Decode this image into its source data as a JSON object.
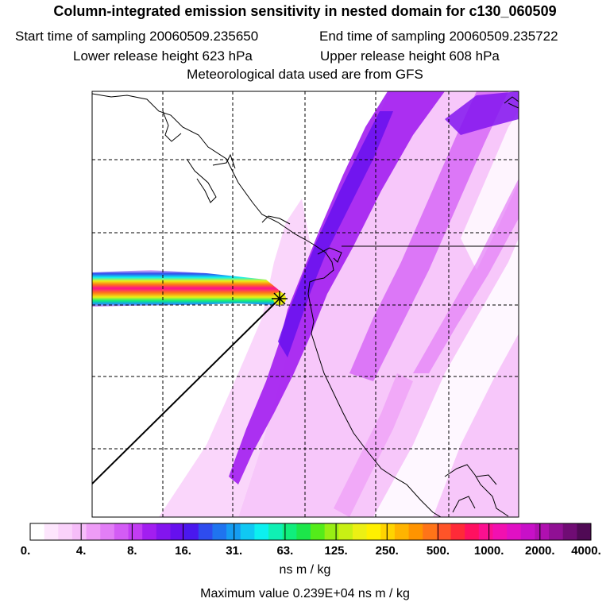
{
  "header": {
    "title": "Column-integrated emission sensitivity in nested domain for c130_060509",
    "start_label": "Start time of sampling 20060509.235650",
    "end_label": "End time of sampling 20060509.235722",
    "lower_label": "Lower release height  623 hPa",
    "upper_label": "Upper release height  608 hPa",
    "meteo_label": "Meteorological data used are from GFS"
  },
  "colorbar": {
    "tick_labels": [
      "0.",
      "4.",
      "8.",
      "16.",
      "31.",
      "63.",
      "125.",
      "250.",
      "500.",
      "1000.",
      "2000.",
      "4000."
    ],
    "colors": [
      "#ffffff",
      "#fde6fd",
      "#fad2fb",
      "#f6bdf9",
      "#ee9cf7",
      "#e27ef6",
      "#d35cf5",
      "#c23cf3",
      "#a21ef0",
      "#8315ee",
      "#6610ee",
      "#4a18ee",
      "#2e4cee",
      "#1f74ef",
      "#159cf2",
      "#10c8f3",
      "#0cf0f0",
      "#0ff0b4",
      "#10ee7c",
      "#1ce64a",
      "#54ec1a",
      "#98ee14",
      "#c8f014",
      "#ecf014",
      "#fff000",
      "#ffd400",
      "#ffb400",
      "#ff9400",
      "#ff7418",
      "#ff5428",
      "#ff2a38",
      "#ff1060",
      "#fb1090",
      "#f210b0",
      "#e010c4",
      "#c810c8",
      "#b010b0",
      "#901094",
      "#700c74",
      "#500a55"
    ],
    "units": "ns m / kg",
    "max_label": "Maximum value  0.239E+04 ns m / kg"
  },
  "map": {
    "release_marker_icon": "release-point-star-icon",
    "max_value": 2390
  }
}
